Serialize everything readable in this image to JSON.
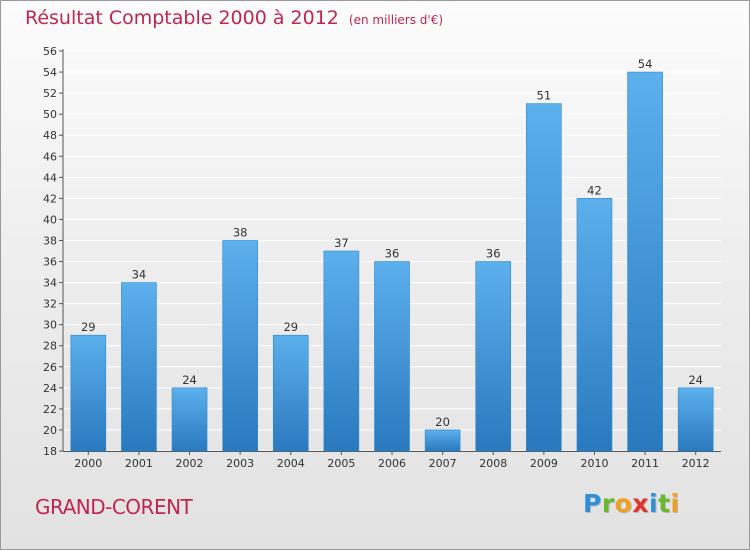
{
  "chart_data": {
    "type": "bar",
    "title": "Résultat Comptable 2000 à 2012",
    "subtitle": "(en milliers d'€)",
    "categories": [
      "2000",
      "2001",
      "2002",
      "2003",
      "2004",
      "2005",
      "2006",
      "2007",
      "2008",
      "2009",
      "2010",
      "2011",
      "2012"
    ],
    "values": [
      29,
      34,
      24,
      38,
      29,
      37,
      36,
      20,
      36,
      51,
      42,
      54,
      24
    ],
    "ylim": [
      18,
      56
    ],
    "yticks": [
      18,
      20,
      22,
      24,
      26,
      28,
      30,
      32,
      34,
      36,
      38,
      40,
      42,
      44,
      46,
      48,
      50,
      52,
      54,
      56
    ],
    "xlabel": "",
    "ylabel": "",
    "grid": true,
    "bar_color": "#4a9fe0"
  },
  "footer": {
    "commune": "GRAND-CORENT",
    "logo_letters": [
      {
        "ch": "P",
        "color": "#2f8fd8"
      },
      {
        "ch": "r",
        "color": "#6ab82f"
      },
      {
        "ch": "o",
        "color": "#f0a020"
      },
      {
        "ch": "x",
        "color": "#e2322b"
      },
      {
        "ch": "i",
        "color": "#2f8fd8"
      },
      {
        "ch": "t",
        "color": "#6ab82f"
      },
      {
        "ch": "i",
        "color": "#f0a020"
      }
    ]
  }
}
